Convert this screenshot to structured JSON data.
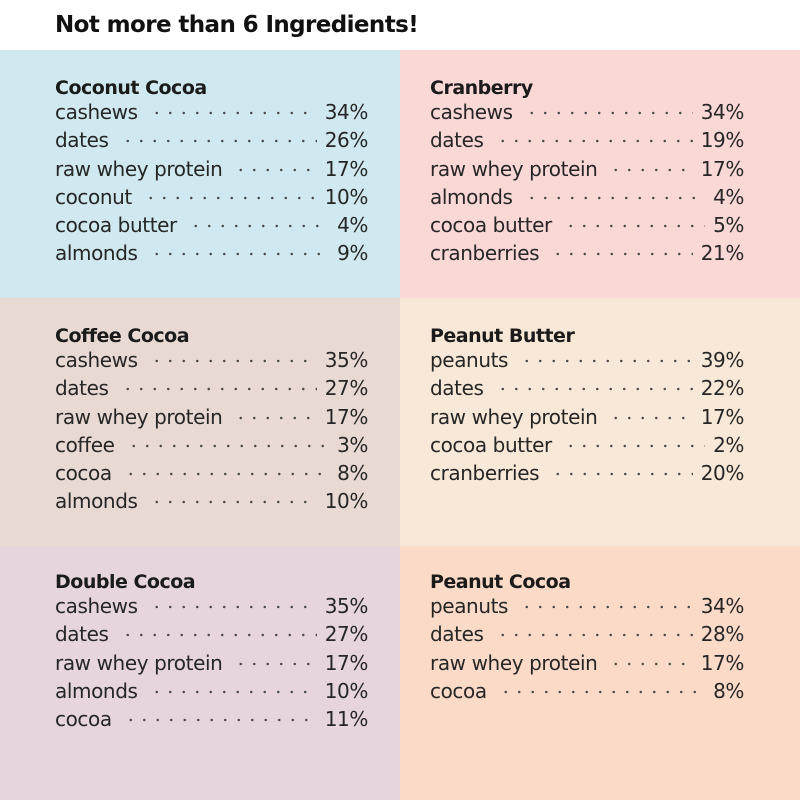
{
  "header": {
    "title": "Not more than 6 Ingredients!"
  },
  "colors": {
    "coconut_cocoa": "#d0e8ef",
    "cranberry": "#f9d8d6",
    "coffee_cocoa": "#e8d9d2",
    "peanut_butter": "#f8e8d8",
    "double_cocoa": "#e6d5dd",
    "peanut_cocoa": "#fbdbc8"
  },
  "panels": [
    {
      "title": "Coconut Cocoa",
      "rows": [
        {
          "name": "cashews",
          "pct": "34%"
        },
        {
          "name": "dates",
          "pct": "26%"
        },
        {
          "name": "raw whey protein",
          "pct": "17%"
        },
        {
          "name": "coconut",
          "pct": "10%"
        },
        {
          "name": "cocoa butter",
          "pct": "4%"
        },
        {
          "name": "almonds",
          "pct": "9%"
        }
      ]
    },
    {
      "title": "Cranberry",
      "rows": [
        {
          "name": "cashews",
          "pct": "34%"
        },
        {
          "name": "dates",
          "pct": "19%"
        },
        {
          "name": "raw whey protein",
          "pct": "17%"
        },
        {
          "name": "almonds",
          "pct": "4%"
        },
        {
          "name": "cocoa butter",
          "pct": "5%"
        },
        {
          "name": "cranberries",
          "pct": "21%"
        }
      ]
    },
    {
      "title": "Coffee Cocoa",
      "rows": [
        {
          "name": "cashews",
          "pct": "35%"
        },
        {
          "name": "dates",
          "pct": "27%"
        },
        {
          "name": "raw whey protein",
          "pct": "17%"
        },
        {
          "name": "coffee",
          "pct": "3%"
        },
        {
          "name": "cocoa",
          "pct": "8%"
        },
        {
          "name": "almonds",
          "pct": "10%"
        }
      ]
    },
    {
      "title": "Peanut Butter",
      "rows": [
        {
          "name": "peanuts",
          "pct": "39%"
        },
        {
          "name": "dates",
          "pct": "22%"
        },
        {
          "name": "raw whey protein",
          "pct": "17%"
        },
        {
          "name": "cocoa butter",
          "pct": "2%"
        },
        {
          "name": "cranberries",
          "pct": "20%"
        }
      ]
    },
    {
      "title": "Double Cocoa",
      "rows": [
        {
          "name": "cashews",
          "pct": "35%"
        },
        {
          "name": "dates",
          "pct": "27%"
        },
        {
          "name": "raw whey protein",
          "pct": "17%"
        },
        {
          "name": "almonds",
          "pct": "10%"
        },
        {
          "name": "cocoa",
          "pct": "11%"
        }
      ]
    },
    {
      "title": "Peanut Cocoa",
      "rows": [
        {
          "name": "peanuts",
          "pct": "34%"
        },
        {
          "name": "dates",
          "pct": "28%"
        },
        {
          "name": "raw whey protein",
          "pct": "17%"
        },
        {
          "name": "cocoa",
          "pct": "8%"
        }
      ]
    }
  ]
}
